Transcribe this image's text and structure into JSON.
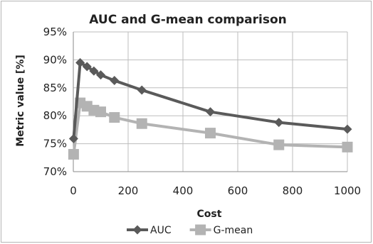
{
  "chart_data": {
    "type": "line",
    "title": "AUC and G-mean comparison",
    "xlabel": "Cost",
    "ylabel": "Metric value [%]",
    "xlim": [
      0,
      1000
    ],
    "ylim": [
      70,
      95
    ],
    "x_ticks": [
      "0",
      "200",
      "400",
      "600",
      "800",
      "1000"
    ],
    "y_ticks": [
      "70%",
      "75%",
      "80%",
      "85%",
      "90%",
      "95%"
    ],
    "grid": true,
    "legend_position": "bottom",
    "series": [
      {
        "name": "AUC",
        "color": "#5a5a5a",
        "marker": "diamond",
        "x": [
          1,
          25,
          50,
          75,
          100,
          150,
          250,
          500,
          750,
          1000
        ],
        "y": [
          75.9,
          89.5,
          88.8,
          88.0,
          87.3,
          86.3,
          84.6,
          80.7,
          78.8,
          77.6
        ]
      },
      {
        "name": "G-mean",
        "color": "#b3b3b3",
        "marker": "square",
        "x": [
          1,
          25,
          50,
          75,
          100,
          150,
          250,
          500,
          750,
          1000
        ],
        "y": [
          73.1,
          82.3,
          81.7,
          81.0,
          80.7,
          79.7,
          78.6,
          76.9,
          74.8,
          74.4
        ]
      }
    ]
  }
}
